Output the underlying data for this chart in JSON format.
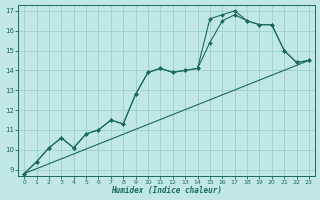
{
  "xlabel": "Humidex (Indice chaleur)",
  "bg_color": "#c2e8e4",
  "grid_color": "#9ecfcb",
  "line_color": "#1a6b5a",
  "xlim": [
    -0.5,
    23.5
  ],
  "ylim": [
    8.7,
    17.3
  ],
  "xticks": [
    0,
    1,
    2,
    3,
    4,
    5,
    6,
    7,
    8,
    9,
    10,
    11,
    12,
    13,
    14,
    15,
    16,
    17,
    18,
    19,
    20,
    21,
    22,
    23
  ],
  "yticks": [
    9,
    10,
    11,
    12,
    13,
    14,
    15,
    16,
    17
  ],
  "line1_x": [
    0,
    1,
    2,
    3,
    4,
    5,
    6,
    7,
    8,
    9,
    10,
    11,
    12,
    13,
    14,
    15,
    16,
    17,
    18,
    19,
    20,
    21,
    22,
    23
  ],
  "line1_y": [
    8.8,
    9.4,
    10.1,
    10.6,
    10.1,
    10.8,
    11.0,
    11.5,
    11.3,
    12.8,
    13.9,
    14.1,
    13.9,
    14.0,
    14.1,
    15.4,
    16.5,
    16.8,
    16.5,
    16.3,
    16.3,
    15.0,
    14.4,
    14.5
  ],
  "line2_x": [
    0,
    1,
    2,
    3,
    4,
    5,
    6,
    7,
    8,
    9,
    10,
    11,
    12,
    13,
    14,
    15,
    16,
    17,
    18,
    19,
    20,
    21,
    22,
    23
  ],
  "line2_y": [
    8.8,
    9.4,
    10.1,
    10.6,
    10.1,
    10.8,
    11.0,
    11.5,
    11.3,
    12.8,
    13.9,
    14.1,
    13.9,
    14.0,
    14.1,
    16.6,
    16.8,
    17.0,
    16.5,
    16.3,
    16.3,
    15.0,
    14.4,
    14.5
  ],
  "line3_x": [
    0,
    23
  ],
  "line3_y": [
    8.8,
    14.5
  ]
}
